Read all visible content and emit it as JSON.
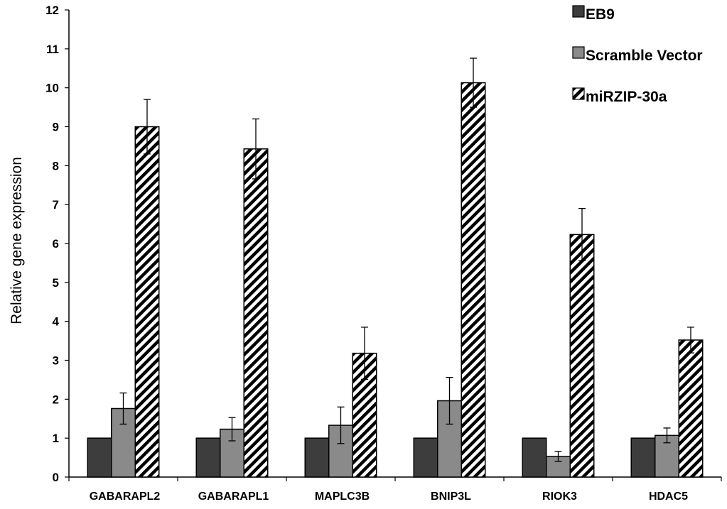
{
  "chart_data": {
    "type": "bar",
    "title": "",
    "xlabel": "",
    "ylabel": "Relative gene expression",
    "ylim": [
      0,
      12
    ],
    "yticks": [
      0,
      1,
      2,
      3,
      4,
      5,
      6,
      7,
      8,
      9,
      10,
      11,
      12
    ],
    "grid": false,
    "legend_position": "top-right",
    "categories": [
      "GABARAPL2",
      "GABARAPL1",
      "MAPLC3B",
      "BNIP3L",
      "RIOK3",
      "HDAC5"
    ],
    "series": [
      {
        "name": "EB9",
        "style": "solid",
        "color": "#3d3d3d",
        "values": [
          1,
          1,
          1,
          1,
          1,
          1
        ],
        "errors": [
          0,
          0,
          0,
          0,
          0,
          0
        ]
      },
      {
        "name": "Scramble Vector",
        "style": "solid",
        "color": "#8a8a8a",
        "values": [
          1.76,
          1.23,
          1.33,
          1.96,
          0.53,
          1.07
        ],
        "errors": [
          0.4,
          0.3,
          0.47,
          0.6,
          0.13,
          0.19
        ]
      },
      {
        "name": "miRZIP-30a",
        "style": "diagonal-hatch",
        "color": "#000000",
        "values": [
          9.0,
          8.43,
          3.18,
          10.13,
          6.23,
          3.52
        ],
        "errors": [
          0.7,
          0.77,
          0.67,
          0.63,
          0.67,
          0.33
        ]
      }
    ]
  }
}
